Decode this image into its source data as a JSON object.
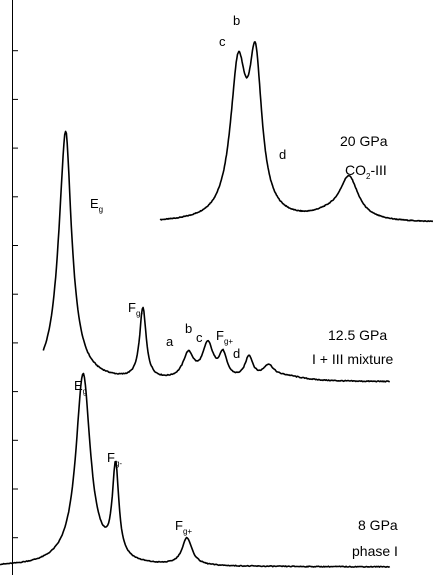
{
  "chart_data": {
    "type": "line",
    "title": "",
    "xlabel": "",
    "ylabel": "",
    "x_range": [
      0,
      100
    ],
    "series": [
      {
        "label_line1": "20 GPa",
        "label_line2_pre": "CO",
        "label_line2_sub": "2",
        "label_line2_post": "-III",
        "baseline": 0.0,
        "bumps": [
          [
            55,
            2.2,
            22
          ],
          [
            59,
            1.8,
            22
          ],
          [
            80.6,
            2.6,
            6.3
          ],
          [
            76,
            5.0,
            1.0
          ]
        ],
        "x_start": 37,
        "x_end": 100,
        "peaks": [
          {
            "label": "c",
            "x": 55.0
          },
          {
            "label": "b",
            "x": 58.5
          },
          {
            "label": "d",
            "x": 80.0
          }
        ]
      },
      {
        "label_line1": "12.5 GPa",
        "label_line2": "I + III mixture",
        "baseline": 0.0,
        "bumps": [
          [
            15,
            2.1,
            25
          ],
          [
            15.3,
            1.0,
            7
          ],
          [
            33.0,
            0.9,
            9
          ],
          [
            43.5,
            1.5,
            3.2
          ],
          [
            48.0,
            1.5,
            4.4
          ],
          [
            51.5,
            1.1,
            3.0
          ],
          [
            57.5,
            1.1,
            2.8
          ],
          [
            62.0,
            1.5,
            1.6
          ],
          [
            66,
            5,
            0.6
          ]
        ],
        "x_start": 10,
        "x_end": 90,
        "peaks": [
          {
            "label": "E",
            "sub": "g",
            "x": 22.5
          },
          {
            "label": "F",
            "sub": "g-",
            "x": 31.5
          },
          {
            "label": "a",
            "x": 39.5
          },
          {
            "label": "b",
            "x": 44.0
          },
          {
            "label": "c",
            "x": 47.0
          },
          {
            "label": "F",
            "sub": "g+",
            "x": 51.5
          },
          {
            "label": "d",
            "x": 55.5
          }
        ]
      },
      {
        "label_line1": "8 GPa",
        "label_line2": "phase I",
        "baseline": 0.0,
        "bumps": [
          [
            19.2,
            2.0,
            25.7
          ],
          [
            26.7,
            0.9,
            12.7
          ],
          [
            43.2,
            1.4,
            3.8
          ],
          [
            18.8,
            6.0,
            1.0
          ]
        ],
        "x_start": 0,
        "x_end": 90,
        "peaks": [
          {
            "label": "E",
            "sub": "g",
            "x": 19.5
          },
          {
            "label": "F",
            "sub": "g-",
            "x": 27.0
          },
          {
            "label": "F",
            "sub": "g+",
            "x": 43.0
          }
        ]
      }
    ],
    "axis": {
      "left_ticks": 15,
      "grid": false
    }
  }
}
